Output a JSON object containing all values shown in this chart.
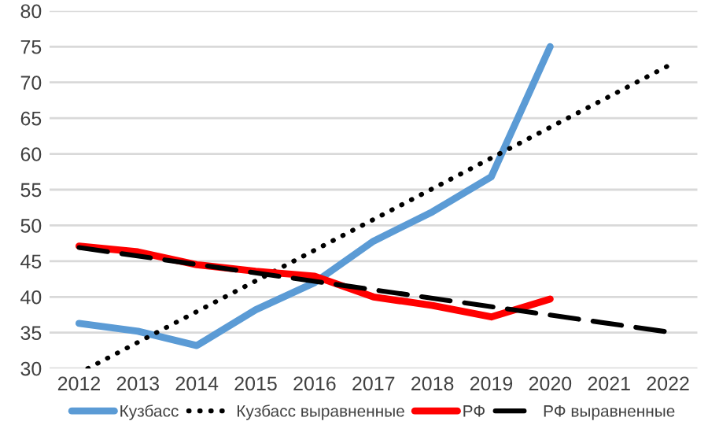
{
  "chart_data": {
    "type": "line",
    "xlim": [
      2011.5,
      2022.5
    ],
    "xticks": [
      2012,
      2013,
      2014,
      2015,
      2016,
      2017,
      2018,
      2019,
      2020,
      2021,
      2022
    ],
    "ylim": [
      30,
      80
    ],
    "yticks": [
      30,
      35,
      40,
      45,
      50,
      55,
      60,
      65,
      70,
      75,
      80
    ],
    "grid": "y",
    "legend": "bottom",
    "marker": "none",
    "series": [
      {
        "name": "Кузбасс",
        "color": "#5b9bd5",
        "line_style": "solid",
        "x": [
          2012,
          2013,
          2014,
          2015,
          2016,
          2017,
          2018,
          2019,
          2020
        ],
        "values": [
          36.3,
          35.2,
          33.2,
          38.2,
          42.0,
          47.8,
          51.9,
          56.8,
          75.0
        ]
      },
      {
        "name": "Кузбасс выравненные",
        "color": "#000000",
        "line_style": "dotted",
        "x": [
          2012.15,
          2022
        ],
        "values": [
          30.0,
          72.3
        ]
      },
      {
        "name": "РФ",
        "color": "#ff0000",
        "line_style": "solid",
        "x": [
          2012,
          2013,
          2014,
          2015,
          2016,
          2017,
          2018,
          2019,
          2020
        ],
        "values": [
          47.1,
          46.3,
          44.5,
          43.6,
          42.9,
          40.0,
          38.8,
          37.2,
          39.7
        ]
      },
      {
        "name": "РФ выравненные",
        "color": "#000000",
        "line_style": "dashed",
        "x": [
          2012,
          2022
        ],
        "values": [
          46.9,
          35.1
        ]
      }
    ]
  }
}
